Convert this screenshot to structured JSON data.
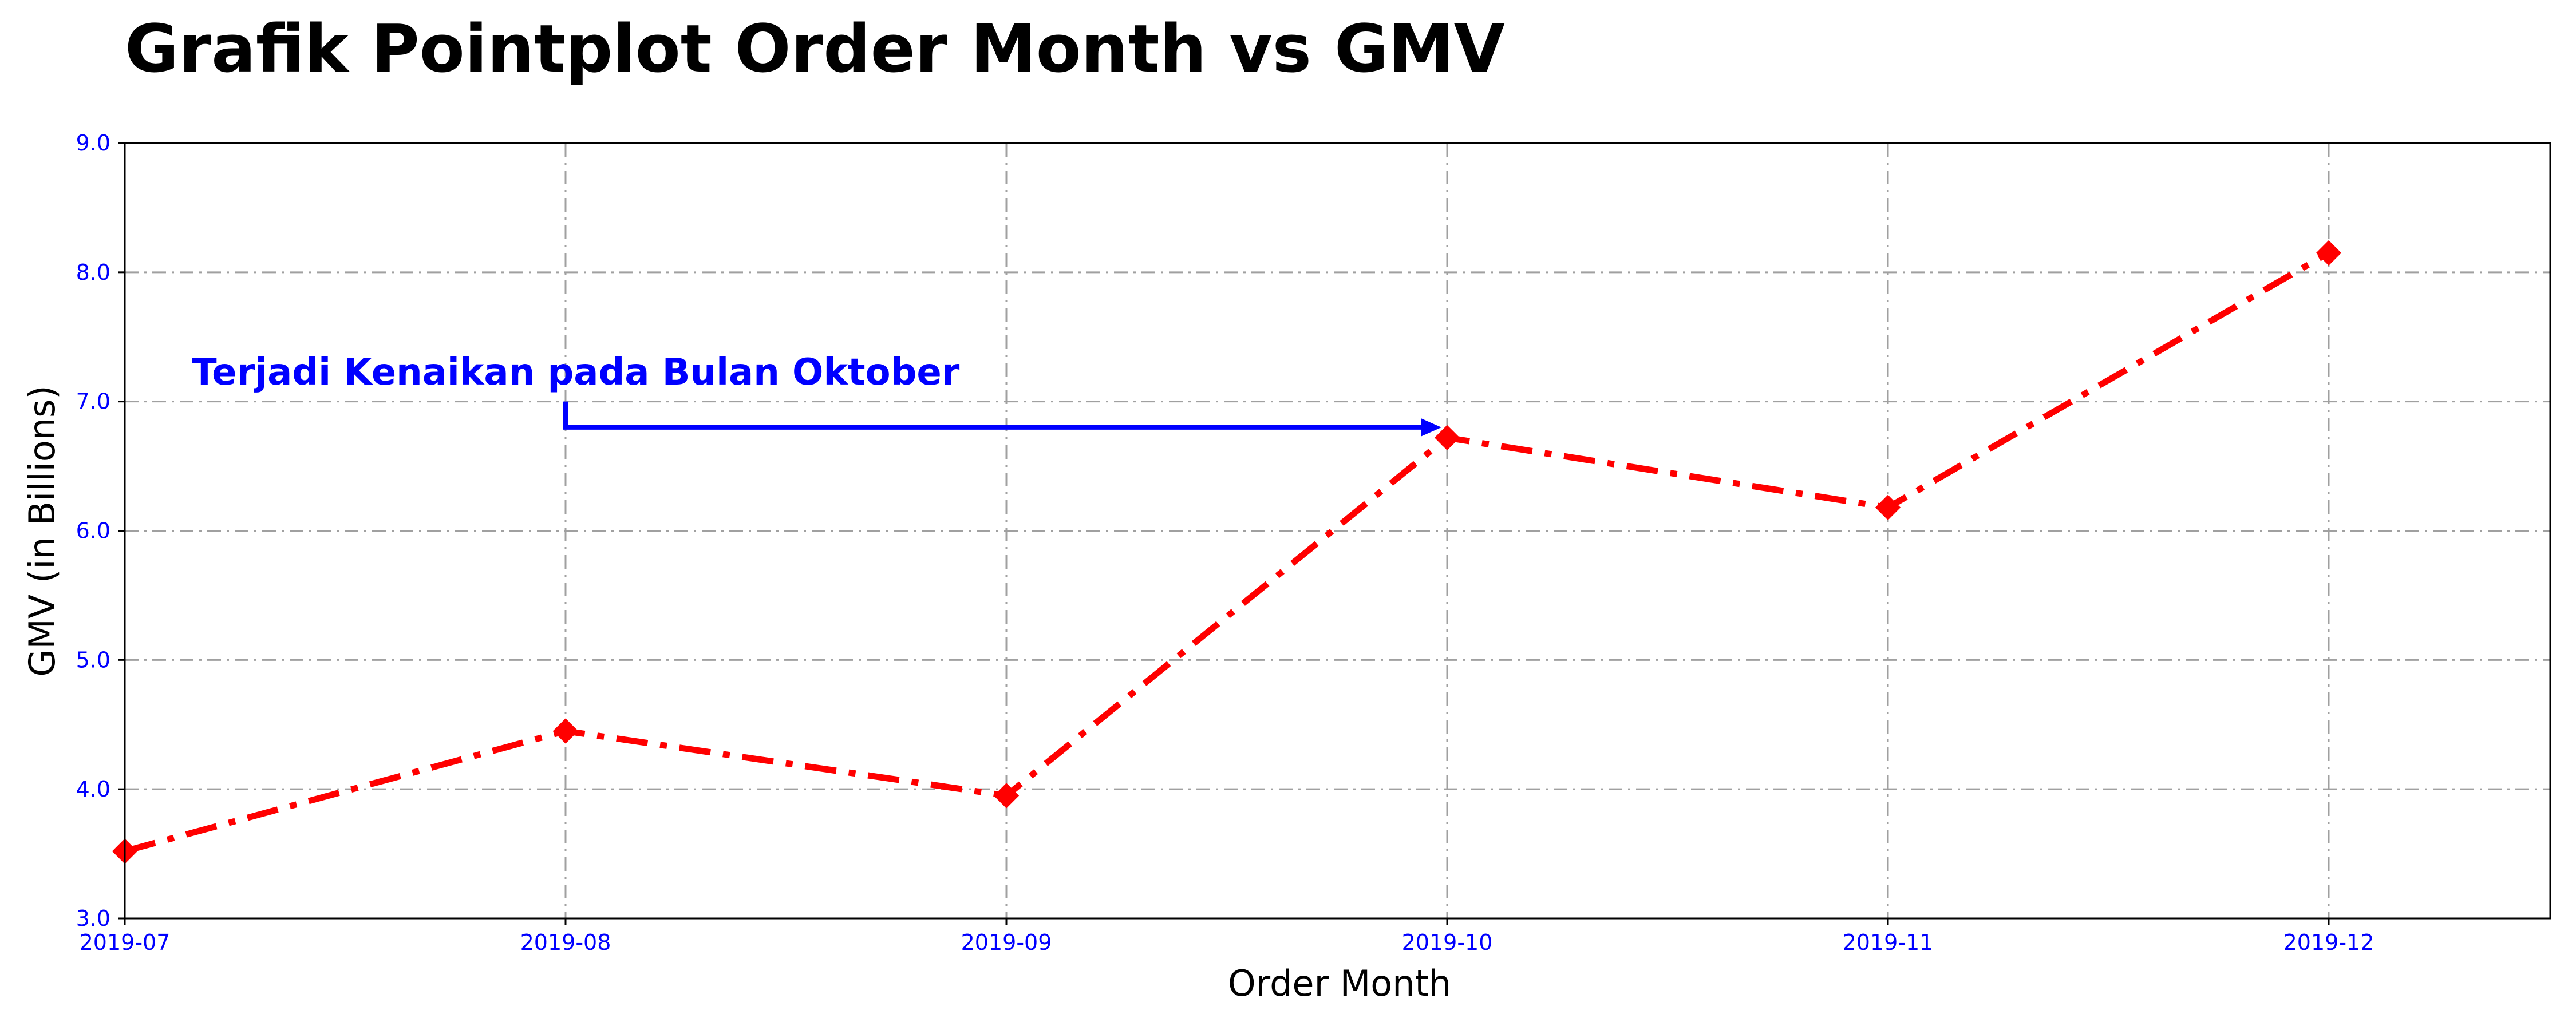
{
  "chart_data": {
    "type": "line",
    "title": "Grafik Pointplot Order Month vs GMV",
    "xlabel": "Order Month",
    "ylabel": "GMV (in Billions)",
    "categories": [
      "2019-07",
      "2019-08",
      "2019-09",
      "2019-10",
      "2019-11",
      "2019-12"
    ],
    "series": [
      {
        "values": [
          3.52,
          4.45,
          3.95,
          6.72,
          6.18,
          8.15
        ],
        "color": "#ff0000",
        "marker": "diamond",
        "line_style": "dash-dot"
      }
    ],
    "ylim": [
      3.0,
      9.0
    ],
    "yticks": [
      "3.0",
      "4.0",
      "5.0",
      "6.0",
      "7.0",
      "8.0",
      "9.0"
    ],
    "grid": true,
    "grid_style": "dash-dot",
    "tick_color": "#0000ff",
    "annotation": {
      "text": "Terjadi Kenaikan pada Bulan Oktober",
      "from_category": "2019-08",
      "from_value": 7.0,
      "to_category": "2019-10",
      "to_value": 6.8,
      "color": "#0000ff"
    }
  }
}
